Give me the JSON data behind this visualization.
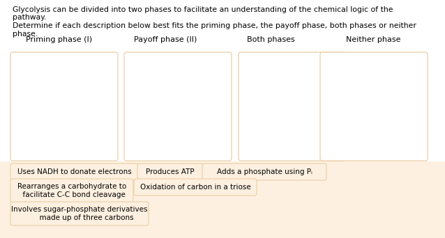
{
  "title_line1": "Glycolysis can be divided into two phases to facilitate an understanding of the chemical logic of the",
  "title_line2": "pathway.",
  "title_line3": "Determine if each description below best fits the priming phase, the payoff phase, both phases or neither",
  "title_line4": "phase.",
  "column_headers": [
    "Priming phase (I)",
    "Payoff phase (II)",
    "Both phases",
    "Neither phase"
  ],
  "box_edge_color": "#E8C99A",
  "tag_bg_color": "#FDF0E0",
  "tag_edge_color": "#E8C99A",
  "background_color": "#FFFFFF",
  "text_color": "#000000",
  "title_fontsize": 7.8,
  "header_fontsize": 8.0,
  "tag_fontsize": 7.5,
  "tags": [
    {
      "text": "Uses NADH to donate electrons",
      "col": 0,
      "row": 0,
      "multiline": false
    },
    {
      "text": "Produces ATP",
      "col": 1,
      "row": 0,
      "multiline": false
    },
    {
      "text": "Adds a phosphate using Pᵢ",
      "col": 2,
      "row": 0,
      "multiline": false
    },
    {
      "text": "Rearranges a carbohydrate to\n  facilitate C-C bond cleavage",
      "col": 0,
      "row": 1,
      "multiline": true
    },
    {
      "text": "Oxidation of carbon in a triose",
      "col": 1,
      "row": 1,
      "multiline": false
    },
    {
      "text": "Involves sugar-phosphate derivatives\n      made up of three carbons",
      "col": 0,
      "row": 2,
      "multiline": true
    }
  ],
  "fig_width": 6.38,
  "fig_height": 3.42,
  "dpi": 100
}
